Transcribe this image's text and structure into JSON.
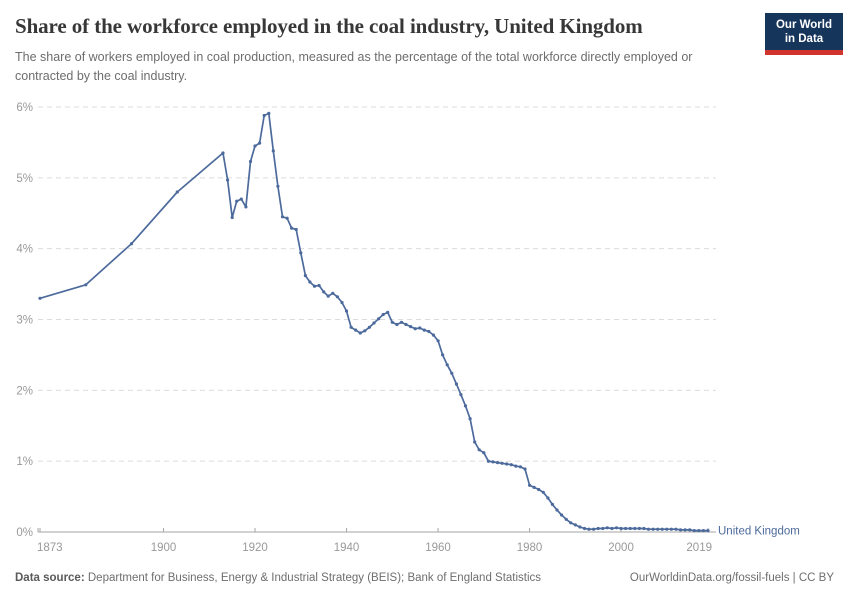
{
  "header": {
    "title": "Share of the workforce employed in the coal industry, United Kingdom",
    "subtitle": "The share of workers employed in coal production, measured as the percentage of the total workforce directly employed or contracted by the coal industry.",
    "logo": {
      "line1": "Our World",
      "line2": "in Data",
      "bg_color": "#16355B",
      "bar_color": "#D0342C",
      "text_color": "#FFFFFF"
    }
  },
  "chart_data": {
    "type": "line",
    "title": "Share of the workforce employed in the coal industry, United Kingdom",
    "xlabel": "",
    "ylabel": "",
    "xlim": [
      1873,
      2019
    ],
    "ylim": [
      0,
      6
    ],
    "grid": "horizontal-dashed",
    "legend_position": "end-of-line",
    "x_ticks": [
      {
        "year": 1873,
        "label": "1873"
      },
      {
        "year": 1900,
        "label": "1900"
      },
      {
        "year": 1920,
        "label": "1920"
      },
      {
        "year": 1940,
        "label": "1940"
      },
      {
        "year": 1960,
        "label": "1960"
      },
      {
        "year": 1980,
        "label": "1980"
      },
      {
        "year": 2000,
        "label": "2000"
      },
      {
        "year": 2019,
        "label": "2019"
      }
    ],
    "y_ticks": [
      {
        "value": 0,
        "label": "0%"
      },
      {
        "value": 1,
        "label": "1%"
      },
      {
        "value": 2,
        "label": "2%"
      },
      {
        "value": 3,
        "label": "3%"
      },
      {
        "value": 4,
        "label": "4%"
      },
      {
        "value": 5,
        "label": "5%"
      },
      {
        "value": 6,
        "label": "6%"
      }
    ],
    "series": [
      {
        "name": "United Kingdom",
        "color": "#4C6A9C",
        "points": [
          [
            1873,
            3.3
          ],
          [
            1883,
            3.49
          ],
          [
            1893,
            4.07
          ],
          [
            1903,
            4.8
          ],
          [
            1913,
            5.35
          ],
          [
            1914,
            4.97
          ],
          [
            1915,
            4.44
          ],
          [
            1916,
            4.67
          ],
          [
            1917,
            4.7
          ],
          [
            1918,
            4.59
          ],
          [
            1919,
            5.23
          ],
          [
            1920,
            5.45
          ],
          [
            1921,
            5.49
          ],
          [
            1922,
            5.88
          ],
          [
            1923,
            5.91
          ],
          [
            1924,
            5.38
          ],
          [
            1925,
            4.88
          ],
          [
            1926,
            4.45
          ],
          [
            1927,
            4.43
          ],
          [
            1928,
            4.29
          ],
          [
            1929,
            4.27
          ],
          [
            1930,
            3.94
          ],
          [
            1931,
            3.62
          ],
          [
            1932,
            3.53
          ],
          [
            1933,
            3.47
          ],
          [
            1934,
            3.48
          ],
          [
            1935,
            3.39
          ],
          [
            1936,
            3.33
          ],
          [
            1937,
            3.37
          ],
          [
            1938,
            3.32
          ],
          [
            1939,
            3.24
          ],
          [
            1940,
            3.12
          ],
          [
            1941,
            2.89
          ],
          [
            1942,
            2.85
          ],
          [
            1943,
            2.81
          ],
          [
            1944,
            2.84
          ],
          [
            1945,
            2.89
          ],
          [
            1946,
            2.95
          ],
          [
            1947,
            3.01
          ],
          [
            1948,
            3.07
          ],
          [
            1949,
            3.1
          ],
          [
            1950,
            2.96
          ],
          [
            1951,
            2.93
          ],
          [
            1952,
            2.96
          ],
          [
            1953,
            2.93
          ],
          [
            1954,
            2.9
          ],
          [
            1955,
            2.87
          ],
          [
            1956,
            2.88
          ],
          [
            1957,
            2.85
          ],
          [
            1958,
            2.83
          ],
          [
            1959,
            2.78
          ],
          [
            1960,
            2.7
          ],
          [
            1961,
            2.5
          ],
          [
            1962,
            2.36
          ],
          [
            1963,
            2.24
          ],
          [
            1964,
            2.09
          ],
          [
            1965,
            1.94
          ],
          [
            1966,
            1.78
          ],
          [
            1967,
            1.6
          ],
          [
            1968,
            1.27
          ],
          [
            1969,
            1.16
          ],
          [
            1970,
            1.12
          ],
          [
            1971,
            1.0
          ],
          [
            1972,
            0.99
          ],
          [
            1973,
            0.98
          ],
          [
            1974,
            0.97
          ],
          [
            1975,
            0.96
          ],
          [
            1976,
            0.95
          ],
          [
            1977,
            0.93
          ],
          [
            1978,
            0.92
          ],
          [
            1979,
            0.89
          ],
          [
            1980,
            0.66
          ],
          [
            1981,
            0.63
          ],
          [
            1982,
            0.6
          ],
          [
            1983,
            0.56
          ],
          [
            1984,
            0.48
          ],
          [
            1985,
            0.39
          ],
          [
            1986,
            0.31
          ],
          [
            1987,
            0.24
          ],
          [
            1988,
            0.18
          ],
          [
            1989,
            0.13
          ],
          [
            1990,
            0.1
          ],
          [
            1991,
            0.07
          ],
          [
            1992,
            0.05
          ],
          [
            1993,
            0.04
          ],
          [
            1994,
            0.04
          ],
          [
            1995,
            0.05
          ],
          [
            1996,
            0.05
          ],
          [
            1997,
            0.06
          ],
          [
            1998,
            0.05
          ],
          [
            1999,
            0.06
          ],
          [
            2000,
            0.05
          ],
          [
            2001,
            0.05
          ],
          [
            2002,
            0.05
          ],
          [
            2003,
            0.05
          ],
          [
            2004,
            0.05
          ],
          [
            2005,
            0.05
          ],
          [
            2006,
            0.04
          ],
          [
            2007,
            0.04
          ],
          [
            2008,
            0.04
          ],
          [
            2009,
            0.04
          ],
          [
            2010,
            0.04
          ],
          [
            2011,
            0.04
          ],
          [
            2012,
            0.04
          ],
          [
            2013,
            0.03
          ],
          [
            2014,
            0.03
          ],
          [
            2015,
            0.03
          ],
          [
            2016,
            0.02
          ],
          [
            2017,
            0.02
          ],
          [
            2018,
            0.02
          ],
          [
            2019,
            0.02
          ]
        ]
      }
    ],
    "entity_label": "United Kingdom",
    "colors": {
      "line": "#4C6A9C",
      "gridline": "#DCDCDC",
      "axis": "#A6A6A6",
      "tick_label": "#999999"
    }
  },
  "footer": {
    "source_label": "Data source:",
    "source_text": " Department for Business, Energy & Industrial Strategy (BEIS); Bank of England Statistics",
    "link_text": "OurWorldinData.org/fossil-fuels | CC BY"
  }
}
